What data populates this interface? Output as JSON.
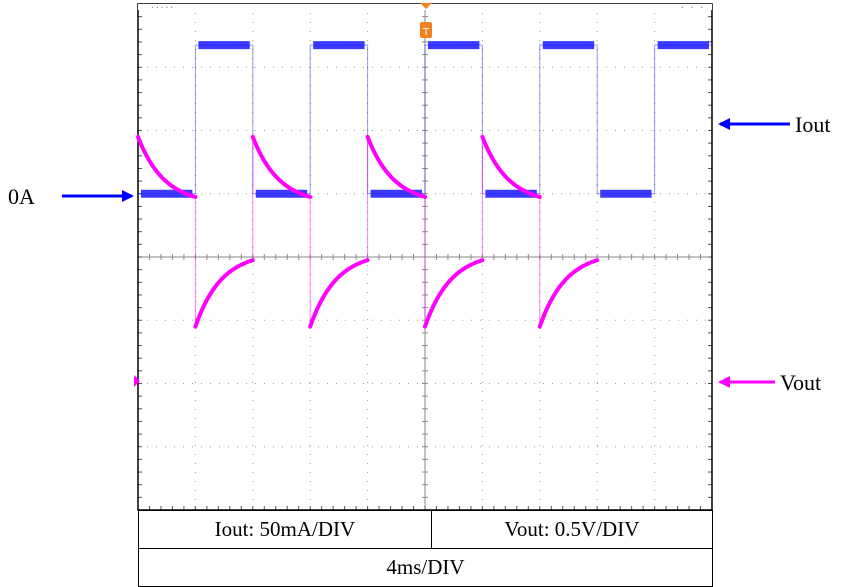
{
  "chart_data": {
    "type": "line",
    "grid": true,
    "grid_divisions": {
      "x": 10,
      "y": 8
    },
    "series": [
      {
        "name": "Iout",
        "color": "#1a1aff",
        "unit_per_div": "50mA/DIV",
        "zero_level_label": "0A",
        "shape": "square",
        "points_div": [
          [
            0,
            1.0
          ],
          [
            1,
            1.0
          ],
          [
            1,
            3.35
          ],
          [
            2,
            3.35
          ],
          [
            2,
            1.0
          ],
          [
            3,
            1.0
          ],
          [
            3,
            3.35
          ],
          [
            4,
            3.35
          ],
          [
            4,
            1.0
          ],
          [
            5,
            1.0
          ],
          [
            5,
            3.35
          ],
          [
            6,
            3.35
          ],
          [
            6,
            1.0
          ],
          [
            7,
            1.0
          ],
          [
            7,
            3.35
          ],
          [
            8,
            3.35
          ],
          [
            8,
            1.0
          ],
          [
            9,
            1.0
          ],
          [
            9,
            3.35
          ],
          [
            10,
            3.35
          ]
        ]
      },
      {
        "name": "Vout",
        "color": "#ff00ff",
        "unit_per_div": "0.5V/DIV",
        "shape": "exponential-ripple",
        "segments_div": [
          {
            "x0": 0,
            "x1": 1,
            "y0": 1.9,
            "y1": 0.95,
            "decay": true
          },
          {
            "x0": 1,
            "x1": 2,
            "y0": -1.1,
            "y1": -0.05,
            "decay": false
          },
          {
            "x0": 2,
            "x1": 3,
            "y0": 1.9,
            "y1": 0.95,
            "decay": true
          },
          {
            "x0": 3,
            "x1": 4,
            "y0": -1.1,
            "y1": -0.05,
            "decay": false
          },
          {
            "x0": 4,
            "x1": 5,
            "y0": 1.9,
            "y1": 0.95,
            "decay": true
          },
          {
            "x0": 5,
            "x1": 6,
            "y0": -1.1,
            "y1": -0.05,
            "decay": false
          },
          {
            "x0": 6,
            "x1": 7,
            "y0": 1.9,
            "y1": 0.95,
            "decay": true
          },
          {
            "x0": 7,
            "x1": 8,
            "y0": -1.1,
            "y1": -0.05,
            "decay": false
          }
        ]
      }
    ],
    "time_per_div": "4ms/DIV",
    "annotations": [
      "0A",
      "Iout",
      "Vout"
    ]
  },
  "labels": {
    "zero": "0A",
    "iout": "Iout",
    "vout": "Vout"
  },
  "table": {
    "iout_scale": "Iout: 50mA/DIV",
    "vout_scale": "Vout: 0.5V/DIV",
    "time_scale": "4ms/DIV"
  },
  "colors": {
    "iout": "#1a1aff",
    "vout": "#ff00ff",
    "arrow_blue": "#0000ff",
    "arrow_magenta": "#ff00ff",
    "trigger": "#f08020"
  }
}
